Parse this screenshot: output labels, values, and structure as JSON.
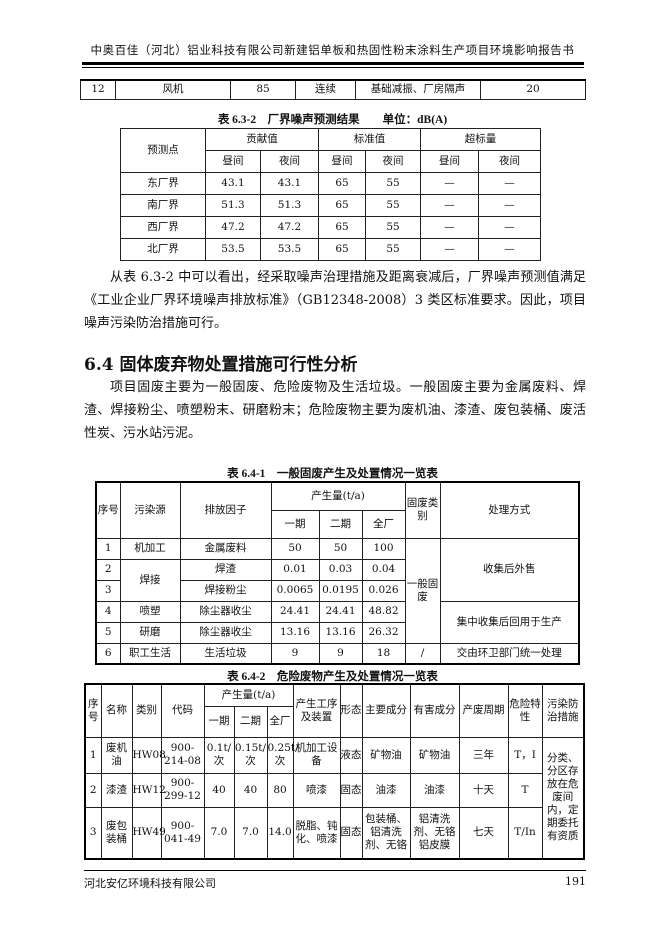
{
  "header": {
    "title": "中奥百佳（河北）铝业科技有限公司新建铝单板和热固性粉末涂料生产项目环境影响报告书"
  },
  "top_row": [
    "12",
    "风机",
    "85",
    "连续",
    "基础减振、厂房隔声",
    "20"
  ],
  "t632": {
    "caption": "表 6.3-2　厂界噪声预测结果　　单位：dB(A)",
    "h": {
      "point": "预测点",
      "contrib": "贡献值",
      "std": "标准值",
      "over": "超标量",
      "day": "昼间",
      "night": "夜间"
    },
    "rows": [
      [
        "东厂界",
        "43.1",
        "43.1",
        "65",
        "55",
        "—",
        "—"
      ],
      [
        "南厂界",
        "51.3",
        "51.3",
        "65",
        "55",
        "—",
        "—"
      ],
      [
        "西厂界",
        "47.2",
        "47.2",
        "65",
        "55",
        "—",
        "—"
      ],
      [
        "北厂界",
        "53.5",
        "53.5",
        "65",
        "55",
        "—",
        "—"
      ]
    ]
  },
  "para1": "从表 6.3-2 中可以看出，经采取噪声治理措施及距离衰减后，厂界噪声预测值满足《工业企业厂界环境噪声排放标准》（GB12348-2008）3 类区标准要求。因此，项目噪声污染防治措施可行。",
  "section": {
    "heading": "6.4  固体废弃物处置措施可行性分析"
  },
  "para2": "项目固废主要为一般固废、危险废物及生活垃圾。一般固废主要为金属废料、焊渣、焊接粉尘、喷塑粉末、研磨粉末；危险废物主要为废机油、漆渣、废包装桶、废活性炭、污水站污泥。",
  "t641": {
    "caption": "表 6.4-1　一般固废产生及处置情况一览表",
    "h": {
      "no": "序号",
      "src": "污染源",
      "factor": "排放因子",
      "amount": "产生量(t/a)",
      "p1": "一期",
      "p2": "二期",
      "all": "全厂",
      "type": "固废类别",
      "method": "处理方式"
    },
    "rows": [
      [
        "1",
        "机加工",
        "金属废料",
        "50",
        "50",
        "100"
      ],
      [
        "2",
        "焊接",
        "焊渣",
        "0.01",
        "0.03",
        "0.04"
      ],
      [
        "3",
        "",
        "焊接粉尘",
        "0.0065",
        "0.0195",
        "0.026"
      ],
      [
        "4",
        "喷塑",
        "除尘器收尘",
        "24.41",
        "24.41",
        "48.82"
      ],
      [
        "5",
        "研磨",
        "除尘器收尘",
        "13.16",
        "13.16",
        "26.32"
      ],
      [
        "6",
        "职工生活",
        "生活垃圾",
        "9",
        "9",
        "18"
      ]
    ],
    "type_general": "一般固废",
    "type_6": "/",
    "m1": "收集后外售",
    "m2": "集中收集后回用于生产",
    "m3": "交由环卫部门统一处理"
  },
  "t642": {
    "caption": "表 6.4-2　危险废物产生及处置情况一览表",
    "h": {
      "no": "序号",
      "name": "名称",
      "cat": "类别",
      "code": "代码",
      "amount": "产生量(t/a)",
      "p1": "一期",
      "p2": "二期",
      "all": "全厂",
      "proc": "产生工序及装置",
      "form": "形态",
      "main": "主要成分",
      "harm": "有害成分",
      "cycle": "产废周期",
      "hazard": "危险特性",
      "measure": "污染防治措施"
    },
    "rows": [
      [
        "1",
        "废机油",
        "HW08",
        "900-214-08",
        "0.1t/次",
        "0.15t/次",
        "0.25t/次",
        "机加工设备",
        "液态",
        "矿物油",
        "矿物油",
        "三年",
        "T，I"
      ],
      [
        "2",
        "漆渣",
        "HW12",
        "900-299-12",
        "40",
        "40",
        "80",
        "喷漆",
        "固态",
        "油漆",
        "油漆",
        "十天",
        "T"
      ],
      [
        "3",
        "废包装桶",
        "HW49",
        "900-041-49",
        "7.0",
        "7.0",
        "14.0",
        "脱脂、钝化、喷漆",
        "固态",
        "包装桶、铝清洗剂、无铬",
        "铝清洗剂、无铬铝皮膜",
        "七天",
        "T/In"
      ]
    ],
    "measure": "分类、分区存放在危废间内，定期委托有资质"
  },
  "footer": {
    "company": "河北安亿环境科技有限公司",
    "page": "191"
  }
}
